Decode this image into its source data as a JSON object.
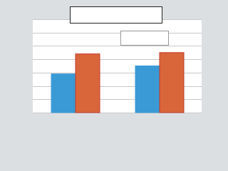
{
  "chart_data": {
    "type": "bar",
    "categories": [
      null,
      null
    ],
    "series": [
      {
        "color": "#3a9ad6",
        "values": [
          2.9,
          3.5
        ]
      },
      {
        "color": "#d9663a",
        "values": [
          4.4,
          4.5
        ]
      }
    ],
    "ylim": [
      0,
      7
    ],
    "yticks": [
      0,
      1,
      2,
      3,
      4,
      5,
      6,
      7
    ],
    "grid": true
  }
}
